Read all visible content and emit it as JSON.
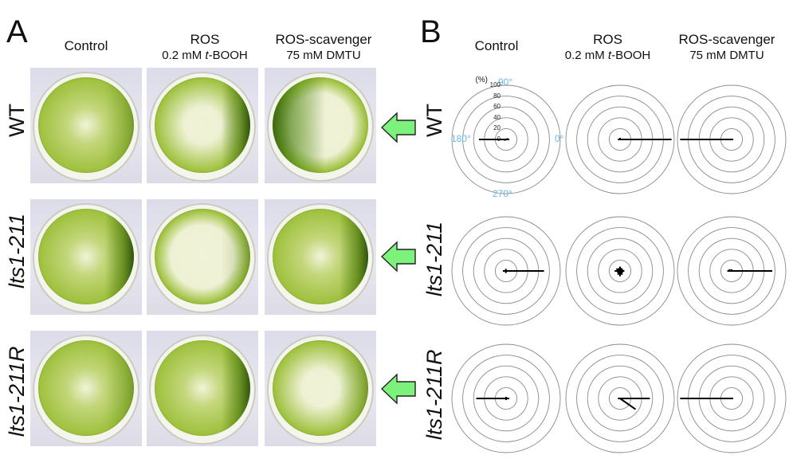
{
  "panel_a": {
    "letter": "A",
    "columns": [
      {
        "title": "Control",
        "sub": ""
      },
      {
        "title": "ROS",
        "sub_pre": "0.2 mM ",
        "sub_ital": "t",
        "sub_post": "-BOOH"
      },
      {
        "title": "ROS-scavenger",
        "sub": "75 mM DMTU"
      }
    ],
    "rows": [
      {
        "label": "WT",
        "italic": false
      },
      {
        "label": "lts1-211",
        "italic": true
      },
      {
        "label": "lts1-211R",
        "italic": true
      }
    ],
    "arrow_color": "#7cf27c"
  },
  "panel_b": {
    "letter": "B",
    "columns": [
      {
        "title": "Control",
        "sub": ""
      },
      {
        "title": "ROS",
        "sub_pre": "0.2 mM ",
        "sub_ital": "t",
        "sub_post": "-BOOH"
      },
      {
        "title": "ROS-scavenger",
        "sub": "75 mM DMTU"
      }
    ],
    "rows": [
      {
        "label": "WT",
        "italic": false
      },
      {
        "label": "lts1-211",
        "italic": true
      },
      {
        "label": "lts1-211R",
        "italic": true
      }
    ],
    "axis_unit": "(%)",
    "radial_ticks": [
      "100",
      "80",
      "60",
      "40",
      "20",
      "0"
    ],
    "angle_labels": {
      "top": "90°",
      "left": "180°",
      "right": "0°",
      "bottom": "270°"
    },
    "angle_color": "#6cb8e8"
  },
  "chart_data": {
    "type": "polar",
    "rlim": [
      0,
      100
    ],
    "grid": true,
    "panels": [
      {
        "row": "WT",
        "col": "Control",
        "vectors": [
          {
            "angle_deg": 180,
            "r": 50
          },
          {
            "angle_deg": 0,
            "r": 6
          },
          {
            "angle_deg": 20,
            "r": 4
          },
          {
            "angle_deg": 200,
            "r": 4
          }
        ]
      },
      {
        "row": "WT",
        "col": "ROS",
        "vectors": [
          {
            "angle_deg": 0,
            "r": 95
          },
          {
            "angle_deg": 180,
            "r": 4
          },
          {
            "angle_deg": 90,
            "r": 3
          }
        ]
      },
      {
        "row": "WT",
        "col": "ROS-scavenger",
        "vectors": [
          {
            "angle_deg": 180,
            "r": 95
          },
          {
            "angle_deg": 0,
            "r": 3
          }
        ]
      },
      {
        "row": "lts1-211",
        "col": "Control",
        "vectors": [
          {
            "angle_deg": 0,
            "r": 70
          },
          {
            "angle_deg": 180,
            "r": 6
          },
          {
            "angle_deg": 100,
            "r": 4
          },
          {
            "angle_deg": 260,
            "r": 4
          }
        ]
      },
      {
        "row": "lts1-211",
        "col": "ROS",
        "vectors": [
          {
            "angle_deg": 0,
            "r": 8
          },
          {
            "angle_deg": 30,
            "r": 6
          },
          {
            "angle_deg": 60,
            "r": 6
          },
          {
            "angle_deg": 90,
            "r": 8
          },
          {
            "angle_deg": 120,
            "r": 6
          },
          {
            "angle_deg": 150,
            "r": 8
          },
          {
            "angle_deg": 180,
            "r": 10
          },
          {
            "angle_deg": 210,
            "r": 6
          },
          {
            "angle_deg": 240,
            "r": 8
          },
          {
            "angle_deg": 270,
            "r": 10
          },
          {
            "angle_deg": 300,
            "r": 8
          },
          {
            "angle_deg": 330,
            "r": 6
          }
        ]
      },
      {
        "row": "lts1-211",
        "col": "ROS-scavenger",
        "vectors": [
          {
            "angle_deg": 0,
            "r": 75
          },
          {
            "angle_deg": 180,
            "r": 8
          },
          {
            "angle_deg": 90,
            "r": 3
          },
          {
            "angle_deg": 160,
            "r": 6
          }
        ]
      },
      {
        "row": "lts1-211R",
        "col": "Control",
        "vectors": [
          {
            "angle_deg": 180,
            "r": 55
          },
          {
            "angle_deg": 0,
            "r": 6
          },
          {
            "angle_deg": 90,
            "r": 3
          },
          {
            "angle_deg": 270,
            "r": 3
          }
        ]
      },
      {
        "row": "lts1-211R",
        "col": "ROS",
        "vectors": [
          {
            "angle_deg": 0,
            "r": 55
          },
          {
            "angle_deg": 325,
            "r": 35
          },
          {
            "angle_deg": 180,
            "r": 4
          }
        ]
      },
      {
        "row": "lts1-211R",
        "col": "ROS-scavenger",
        "vectors": [
          {
            "angle_deg": 180,
            "r": 95
          },
          {
            "angle_deg": 0,
            "r": 3
          }
        ]
      }
    ]
  }
}
